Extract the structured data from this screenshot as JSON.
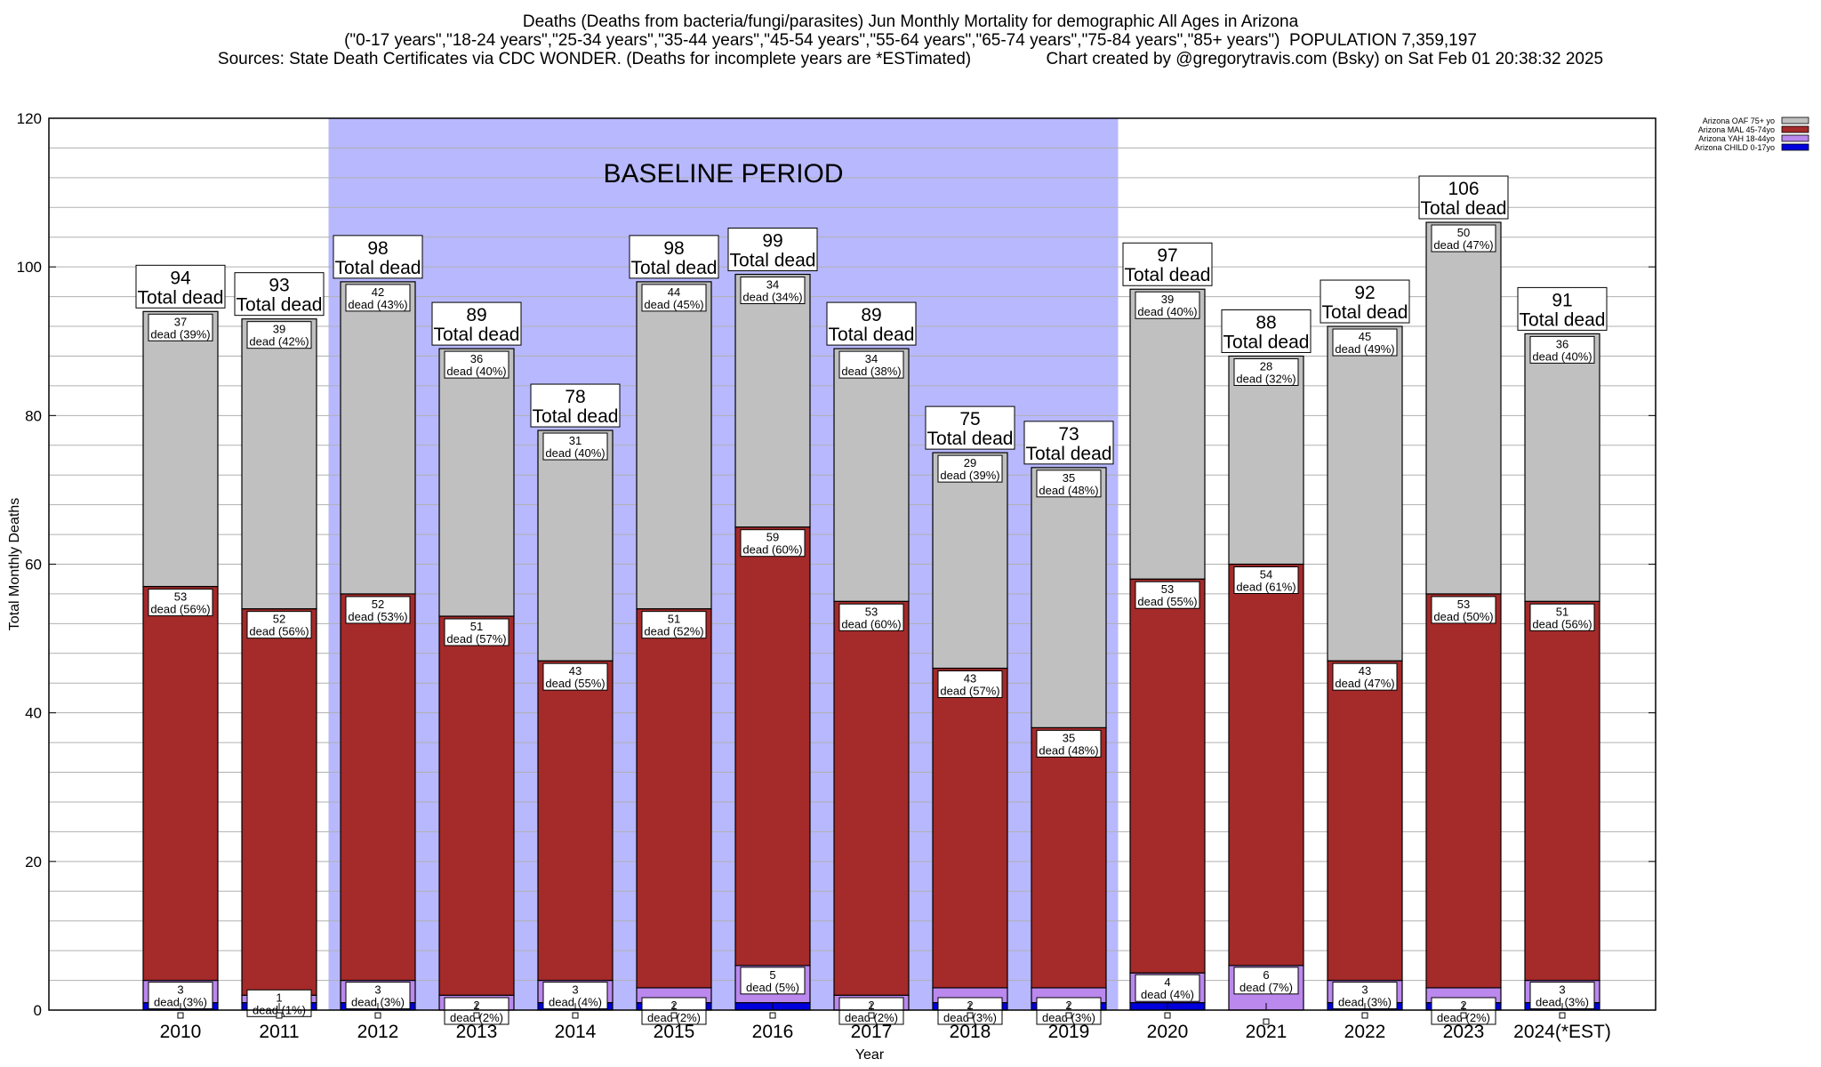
{
  "header": {
    "title_line1": "Deaths (Deaths from bacteria/fungi/parasites) Jun Monthly Mortality for demographic All Ages in Arizona",
    "title_line2": "(\"0-17 years\",\"18-24 years\",\"25-34 years\",\"35-44 years\",\"45-54 years\",\"55-64 years\",\"65-74 years\",\"75-84 years\",\"85+ years\")  POPULATION 7,359,197",
    "title_line3": "Sources: State Death Certificates via CDC WONDER. (Deaths for incomplete years are *ESTimated)                Chart created by @gregorytravis.com (Bsky) on Sat Feb 01 20:38:32 2025"
  },
  "chart_data": {
    "type": "bar",
    "stacked": true,
    "xlabel": "Year",
    "ylabel": "Total Monthly Deaths",
    "ylim": [
      0,
      120
    ],
    "yticks": [
      0,
      20,
      40,
      60,
      80,
      100,
      120
    ],
    "grid": true,
    "legend_position": "top-right",
    "categories": [
      "2010",
      "2011",
      "2012",
      "2013",
      "2014",
      "2015",
      "2016",
      "2017",
      "2018",
      "2019",
      "2020",
      "2021",
      "2022",
      "2023",
      "2024(*EST)"
    ],
    "annotation": {
      "label": "BASELINE PERIOD",
      "start": "2012",
      "end": "2019",
      "color": "#b8b8ff"
    },
    "total_suffix": "Total dead",
    "segment_suffix": "dead",
    "series": [
      {
        "name": "Arizona CHILD 0-17yo",
        "color": "#0000dd",
        "values": [
          1,
          1,
          1,
          0,
          1,
          1,
          1,
          0,
          1,
          1,
          1,
          0,
          1,
          1,
          1
        ],
        "labels": [
          null,
          null,
          null,
          null,
          null,
          null,
          null,
          null,
          null,
          null,
          null,
          null,
          null,
          null,
          null
        ]
      },
      {
        "name": "Arizona YAH 18-44yo",
        "color": "#bb88ee",
        "values": [
          3,
          1,
          3,
          2,
          3,
          2,
          5,
          2,
          2,
          2,
          4,
          6,
          3,
          2,
          3
        ],
        "labels": [
          "3|dead (3%)",
          "1|dead (1%)",
          "3|dead (3%)",
          "2|dead (2%)",
          "3|dead (4%)",
          "2|dead (2%)",
          "5|dead (5%)",
          "2|dead (2%)",
          "2|dead (3%)",
          "2|dead (3%)",
          "4|dead (4%)",
          "6|dead (7%)",
          "3|dead (3%)",
          "2|dead (2%)",
          "3|dead (3%)"
        ]
      },
      {
        "name": "Arizona MAL 45-74yo",
        "color": "#a52a2a",
        "values": [
          53,
          52,
          52,
          51,
          43,
          51,
          59,
          53,
          43,
          35,
          53,
          54,
          43,
          53,
          51
        ],
        "labels": [
          "53|dead (56%)",
          "52|dead (56%)",
          "52|dead (53%)",
          "51|dead (57%)",
          "43|dead (55%)",
          "51|dead (52%)",
          "59|dead (60%)",
          "53|dead (60%)",
          "43|dead (57%)",
          "35|dead (48%)",
          "53|dead (55%)",
          "54|dead (61%)",
          "43|dead (47%)",
          "53|dead (50%)",
          "51|dead (56%)"
        ]
      },
      {
        "name": "Arizona OAF 75+ yo",
        "color": "#c0c0c0",
        "values": [
          37,
          39,
          42,
          36,
          31,
          44,
          34,
          34,
          29,
          35,
          39,
          28,
          45,
          50,
          36
        ],
        "labels": [
          "37|dead (39%)",
          "39|dead (42%)",
          "42|dead (43%)",
          "36|dead (40%)",
          "31|dead (40%)",
          "44|dead (45%)",
          "34|dead (34%)",
          "34|dead (38%)",
          "29|dead (39%)",
          "35|dead (48%)",
          "39|dead (40%)",
          "28|dead (32%)",
          "45|dead (49%)",
          "50|dead (47%)",
          "36|dead (40%)"
        ]
      }
    ],
    "totals": [
      94,
      93,
      98,
      89,
      78,
      98,
      99,
      89,
      75,
      73,
      97,
      88,
      92,
      106,
      91
    ]
  }
}
